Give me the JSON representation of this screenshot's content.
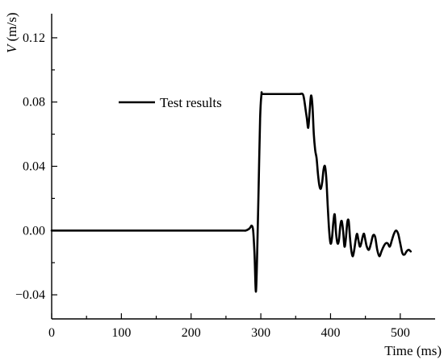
{
  "chart_data": {
    "type": "line",
    "xlabel": "Time (ms)",
    "ylabel_var": "V",
    "ylabel_unit": " (m/s)",
    "xlim": [
      0,
      550
    ],
    "ylim": [
      -0.055,
      0.135
    ],
    "x_ticks": [
      0,
      100,
      200,
      300,
      400,
      500
    ],
    "x_tick_labels": [
      "0",
      "100",
      "200",
      "300",
      "400",
      "500"
    ],
    "y_ticks": [
      -0.04,
      0.0,
      0.04,
      0.08,
      0.12
    ],
    "y_tick_labels": [
      "−0.04",
      "0.00",
      "0.04",
      "0.08",
      "0.12"
    ],
    "legend_position": "top-left",
    "grid": false,
    "series": [
      {
        "name": "Test results",
        "color": "#000000",
        "x": [
          0,
          100,
          200,
          270,
          278,
          283,
          285,
          287,
          289,
          291,
          293,
          295,
          297,
          299,
          301,
          303,
          320,
          340,
          355,
          360,
          362,
          364,
          366,
          368,
          370,
          372,
          374,
          376,
          378,
          380,
          382,
          384,
          386,
          388,
          390,
          392,
          394,
          396,
          398,
          400,
          402,
          404,
          406,
          408,
          410,
          412,
          414,
          416,
          418,
          420,
          422,
          424,
          426,
          428,
          430,
          432,
          434,
          436,
          438,
          440,
          442,
          444,
          446,
          448,
          450,
          452,
          455,
          458,
          461,
          464,
          467,
          470,
          473,
          476,
          479,
          482,
          485,
          488,
          491,
          494,
          497,
          500,
          503,
          506,
          509,
          512,
          515
        ],
        "y": [
          0.0,
          0.0,
          0.0,
          0.0,
          0.0,
          0.001,
          0.002,
          0.003,
          0.0,
          -0.015,
          -0.038,
          -0.01,
          0.03,
          0.07,
          0.085,
          0.085,
          0.085,
          0.085,
          0.085,
          0.085,
          0.082,
          0.076,
          0.07,
          0.064,
          0.074,
          0.084,
          0.078,
          0.06,
          0.05,
          0.045,
          0.035,
          0.028,
          0.026,
          0.03,
          0.038,
          0.04,
          0.032,
          0.015,
          0.0,
          -0.008,
          -0.005,
          0.005,
          0.01,
          -0.002,
          -0.008,
          -0.006,
          0.003,
          0.006,
          0.0,
          -0.01,
          -0.005,
          0.005,
          0.006,
          -0.005,
          -0.013,
          -0.016,
          -0.012,
          -0.006,
          -0.002,
          -0.006,
          -0.01,
          -0.008,
          -0.004,
          -0.002,
          -0.006,
          -0.01,
          -0.012,
          -0.008,
          -0.003,
          -0.004,
          -0.012,
          -0.016,
          -0.013,
          -0.01,
          -0.008,
          -0.008,
          -0.01,
          -0.006,
          -0.002,
          0.0,
          -0.002,
          -0.008,
          -0.014,
          -0.015,
          -0.013,
          -0.012,
          -0.013
        ]
      }
    ]
  }
}
